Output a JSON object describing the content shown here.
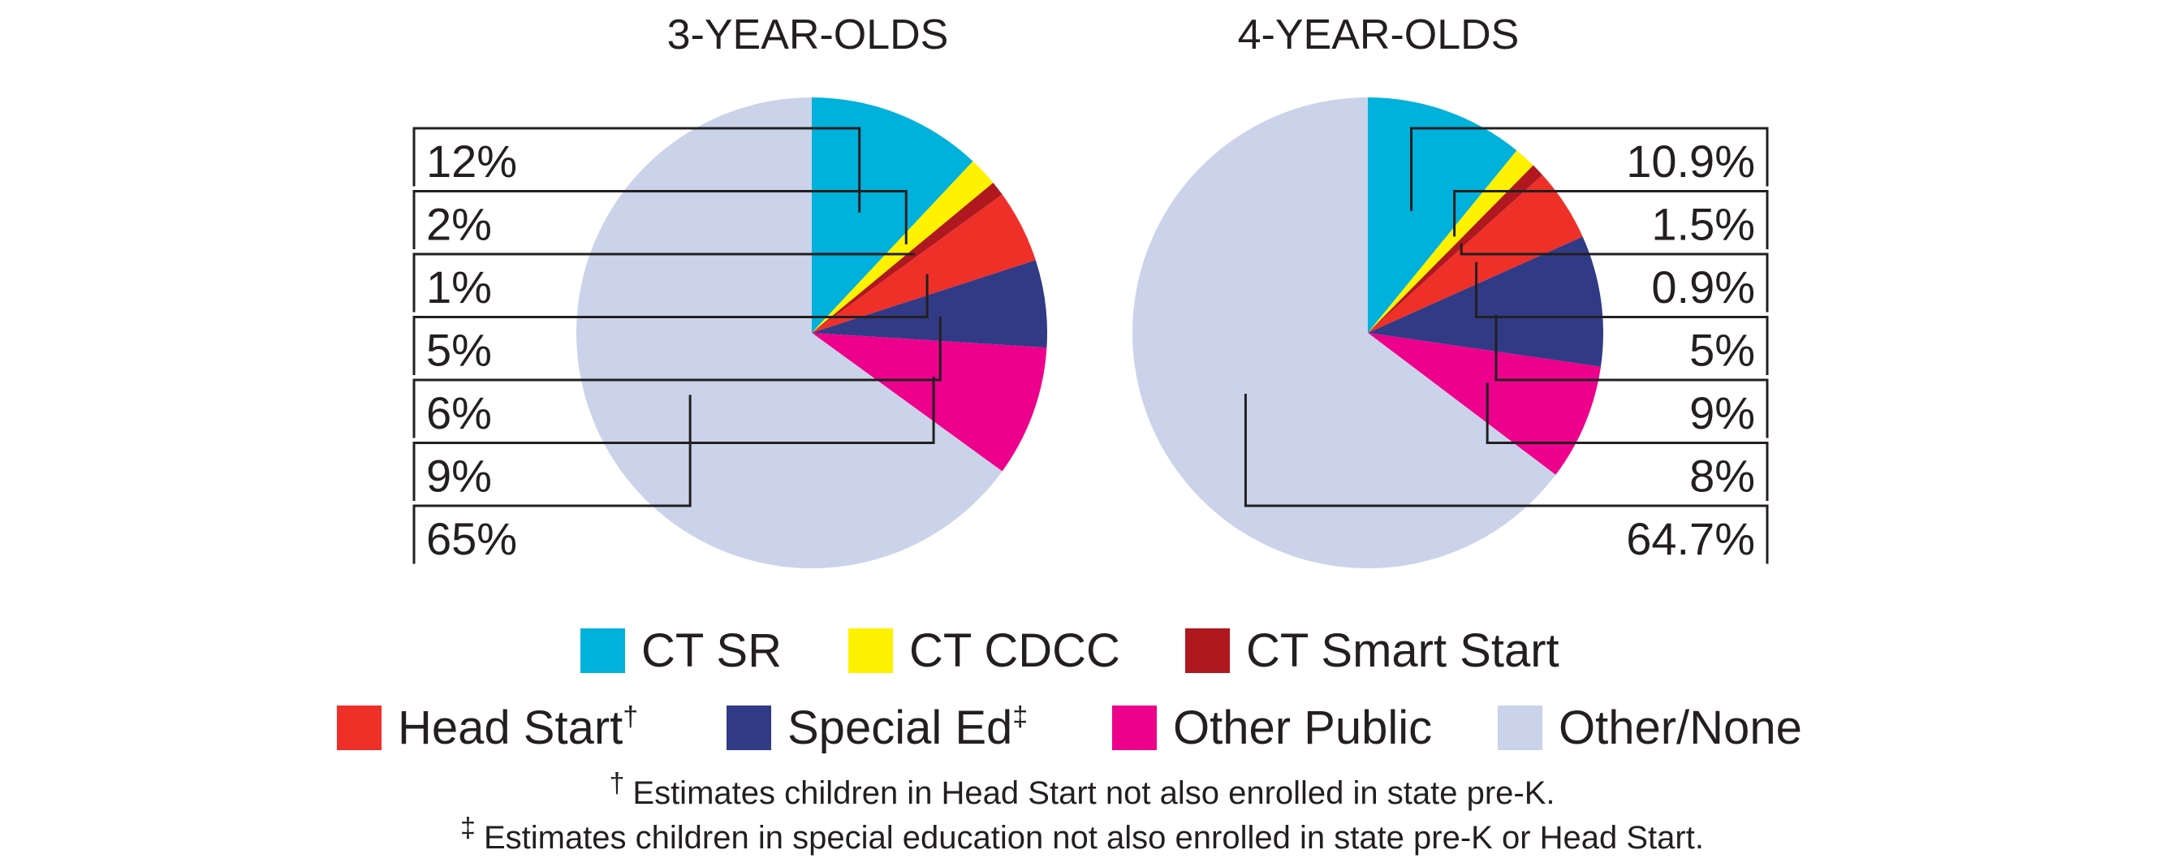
{
  "chart_data": {
    "type": "pie",
    "charts": [
      {
        "title": "3-YEAR-OLDS",
        "slices": [
          {
            "category": "CT SR",
            "value": 12,
            "label": "12%"
          },
          {
            "category": "CT CDCC",
            "value": 2,
            "label": "2%"
          },
          {
            "category": "CT Smart Start",
            "value": 1,
            "label": "1%"
          },
          {
            "category": "Head Start",
            "value": 5,
            "label": "5%"
          },
          {
            "category": "Special Ed",
            "value": 6,
            "label": "6%"
          },
          {
            "category": "Other Public",
            "value": 9,
            "label": "9%"
          },
          {
            "category": "Other/None",
            "value": 65,
            "label": "65%"
          }
        ]
      },
      {
        "title": "4-YEAR-OLDS",
        "slices": [
          {
            "category": "CT SR",
            "value": 10.9,
            "label": "10.9%"
          },
          {
            "category": "CT CDCC",
            "value": 1.5,
            "label": "1.5%"
          },
          {
            "category": "CT Smart Start",
            "value": 0.9,
            "label": "0.9%"
          },
          {
            "category": "Head Start",
            "value": 5,
            "label": "5%"
          },
          {
            "category": "Special Ed",
            "value": 9,
            "label": "9%"
          },
          {
            "category": "Other Public",
            "value": 8,
            "label": "8%"
          },
          {
            "category": "Other/None",
            "value": 64.7,
            "label": "64.7%"
          }
        ]
      }
    ],
    "legend": [
      {
        "label": "CT SR",
        "sup": "",
        "color": "#00b1db"
      },
      {
        "label": "CT CDCC",
        "sup": "",
        "color": "#fff200"
      },
      {
        "label": "CT Smart Start",
        "sup": "",
        "color": "#b0181f"
      },
      {
        "label": "Head Start",
        "sup": "†",
        "color": "#ee3029"
      },
      {
        "label": "Special Ed",
        "sup": "‡",
        "color": "#313a85"
      },
      {
        "label": "Other Public",
        "sup": "",
        "color": "#ec008c"
      },
      {
        "label": "Other/None",
        "sup": "",
        "color": "#cad3ea"
      }
    ],
    "legend_placement": "bottom",
    "footnotes": [
      {
        "mark": "†",
        "text": "Estimates children in Head Start not also enrolled in state pre-K."
      },
      {
        "mark": "‡",
        "text": "Estimates children in special education not also enrolled in state pre-K or Head Start."
      }
    ]
  }
}
